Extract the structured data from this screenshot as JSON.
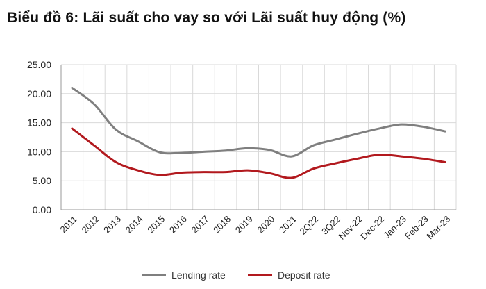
{
  "chart_data": {
    "type": "line",
    "title": "Biểu đồ 6: Lãi suất cho vay so với Lãi suất huy động (%)",
    "categories": [
      "2011",
      "2012",
      "2013",
      "2014",
      "2015",
      "2016",
      "2017",
      "2018",
      "2019",
      "2020",
      "2021",
      "2Q22",
      "3Q22",
      "Nov-22",
      "Dec-22",
      "Jan-23",
      "Feb-23",
      "Mar-23"
    ],
    "y_tick_labels": [
      "0.00",
      "5.00",
      "10.00",
      "15.00",
      "20.00",
      "25.00"
    ],
    "ylim": [
      0,
      25
    ],
    "grid": true,
    "legend_position": "bottom",
    "series": [
      {
        "name": "Lending rate",
        "color": "#7f7f7f",
        "values": [
          21.0,
          18.2,
          13.8,
          11.8,
          9.9,
          9.8,
          10.0,
          10.2,
          10.6,
          10.3,
          9.2,
          11.1,
          12.1,
          13.1,
          14.0,
          14.7,
          14.3,
          13.5
        ]
      },
      {
        "name": "Deposit rate",
        "color": "#b2191e",
        "values": [
          14.0,
          11.1,
          8.2,
          6.8,
          6.0,
          6.4,
          6.5,
          6.5,
          6.8,
          6.3,
          5.5,
          7.1,
          8.0,
          8.8,
          9.5,
          9.2,
          8.8,
          8.2
        ]
      }
    ]
  }
}
